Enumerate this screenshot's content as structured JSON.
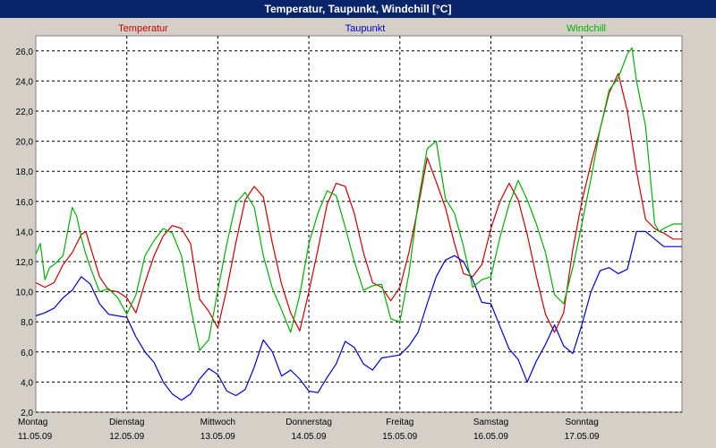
{
  "window": {
    "title": "Temperatur, Taupunkt, Windchill [°C]"
  },
  "chart_data": {
    "type": "line",
    "title": "Temperatur, Taupunkt, Windchill [°C]",
    "ylim": [
      2,
      27
    ],
    "xlim": [
      0,
      7.1
    ],
    "grid": true,
    "legend": "top",
    "y_ticks": [
      "26,0",
      "24,0",
      "22,0",
      "20,0",
      "18,0",
      "16,0",
      "14,0",
      "12,0",
      "10,0",
      "8,0",
      "6,0",
      "4,0",
      "2,0"
    ],
    "y_tick_values": [
      26,
      24,
      22,
      20,
      18,
      16,
      14,
      12,
      10,
      8,
      6,
      4,
      2
    ],
    "x_ticks": [
      {
        "day": "Montag",
        "date": "11.05.09"
      },
      {
        "day": "Dienstag",
        "date": "12.05.09"
      },
      {
        "day": "Mittwoch",
        "date": "13.05.09"
      },
      {
        "day": "Donnerstag",
        "date": "14.05.09"
      },
      {
        "day": "Freitag",
        "date": "15.05.09"
      },
      {
        "day": "Samstag",
        "date": "16.05.09"
      },
      {
        "day": "Sonntag",
        "date": "17.05.09"
      }
    ],
    "series": [
      {
        "name": "Temperatur",
        "color": "#cc0000",
        "x": [
          0.0,
          0.1,
          0.2,
          0.3,
          0.4,
          0.5,
          0.55,
          0.62,
          0.7,
          0.8,
          0.9,
          1.0,
          1.1,
          1.2,
          1.3,
          1.4,
          1.5,
          1.6,
          1.7,
          1.8,
          1.9,
          2.0,
          2.1,
          2.2,
          2.3,
          2.4,
          2.5,
          2.6,
          2.7,
          2.8,
          2.9,
          3.0,
          3.1,
          3.2,
          3.3,
          3.4,
          3.5,
          3.6,
          3.7,
          3.8,
          3.9,
          4.0,
          4.1,
          4.2,
          4.3,
          4.4,
          4.5,
          4.6,
          4.7,
          4.8,
          4.9,
          5.0,
          5.1,
          5.2,
          5.3,
          5.4,
          5.5,
          5.6,
          5.7,
          5.8,
          5.9,
          6.0,
          6.1,
          6.2,
          6.3,
          6.4,
          6.5,
          6.6,
          6.7,
          6.8,
          6.85,
          6.9,
          7.0,
          7.1
        ],
        "y": [
          10.6,
          10.3,
          10.6,
          11.8,
          12.6,
          13.8,
          14.0,
          12.6,
          11.0,
          10.1,
          10.0,
          9.6,
          8.6,
          10.6,
          12.4,
          13.7,
          14.4,
          14.2,
          13.2,
          9.5,
          8.7,
          7.6,
          10.2,
          13.3,
          16.1,
          17.0,
          16.3,
          13.2,
          10.5,
          8.6,
          7.4,
          10.0,
          12.8,
          15.8,
          17.2,
          17.0,
          15.2,
          12.6,
          10.6,
          10.3,
          9.4,
          10.3,
          12.6,
          15.6,
          18.9,
          17.3,
          15.6,
          13.2,
          11.2,
          11.0,
          11.8,
          14.2,
          16.0,
          17.2,
          16.1,
          13.8,
          11.0,
          8.5,
          7.3,
          8.6,
          12.8,
          16.0,
          18.5,
          20.8,
          23.2,
          24.5,
          22.0,
          18.0,
          14.8,
          14.2,
          14.0,
          13.9,
          13.5,
          13.5
        ]
      },
      {
        "name": "Taupunkt",
        "color": "#0000cc",
        "x": [
          0.0,
          0.1,
          0.2,
          0.3,
          0.4,
          0.5,
          0.6,
          0.7,
          0.8,
          0.9,
          1.0,
          1.1,
          1.2,
          1.3,
          1.4,
          1.5,
          1.6,
          1.7,
          1.8,
          1.9,
          2.0,
          2.1,
          2.2,
          2.3,
          2.4,
          2.5,
          2.6,
          2.7,
          2.8,
          2.9,
          3.0,
          3.1,
          3.2,
          3.3,
          3.4,
          3.5,
          3.6,
          3.7,
          3.8,
          3.9,
          4.0,
          4.1,
          4.2,
          4.3,
          4.4,
          4.5,
          4.6,
          4.7,
          4.8,
          4.9,
          5.0,
          5.1,
          5.2,
          5.3,
          5.4,
          5.5,
          5.6,
          5.7,
          5.8,
          5.9,
          6.0,
          6.1,
          6.2,
          6.3,
          6.4,
          6.5,
          6.6,
          6.7,
          6.8,
          6.9,
          7.0,
          7.1
        ],
        "y": [
          8.4,
          8.6,
          8.9,
          9.6,
          10.1,
          11.0,
          10.5,
          9.2,
          8.5,
          8.4,
          8.3,
          7.0,
          6.0,
          5.3,
          4.0,
          3.2,
          2.8,
          3.2,
          4.2,
          4.9,
          4.5,
          3.4,
          3.1,
          3.5,
          5.0,
          6.8,
          6.0,
          4.4,
          4.8,
          4.2,
          3.4,
          3.3,
          4.3,
          5.2,
          6.7,
          6.3,
          5.2,
          4.8,
          5.6,
          5.7,
          5.8,
          6.4,
          7.3,
          9.2,
          11.0,
          12.1,
          12.4,
          12.0,
          10.8,
          9.3,
          9.2,
          7.7,
          6.2,
          5.5,
          4.0,
          5.4,
          6.5,
          7.8,
          6.4,
          5.9,
          7.8,
          10.0,
          11.4,
          11.6,
          11.2,
          11.5,
          14.0,
          14.0,
          13.5,
          13.0,
          13.0,
          13.0
        ]
      },
      {
        "name": "Windchill",
        "color": "#00b000",
        "x": [
          0.0,
          0.05,
          0.1,
          0.15,
          0.2,
          0.3,
          0.4,
          0.45,
          0.5,
          0.55,
          0.6,
          0.7,
          0.8,
          0.9,
          1.0,
          1.1,
          1.2,
          1.3,
          1.4,
          1.5,
          1.6,
          1.7,
          1.8,
          1.9,
          2.0,
          2.1,
          2.2,
          2.3,
          2.4,
          2.5,
          2.6,
          2.7,
          2.8,
          2.9,
          3.0,
          3.1,
          3.2,
          3.3,
          3.4,
          3.5,
          3.6,
          3.7,
          3.8,
          3.9,
          4.0,
          4.1,
          4.2,
          4.3,
          4.4,
          4.5,
          4.6,
          4.7,
          4.8,
          4.9,
          5.0,
          5.1,
          5.2,
          5.3,
          5.4,
          5.5,
          5.6,
          5.7,
          5.8,
          5.9,
          6.0,
          6.1,
          6.2,
          6.3,
          6.4,
          6.5,
          6.55,
          6.6,
          6.7,
          6.8,
          6.85,
          6.9,
          7.0,
          7.1
        ],
        "y": [
          12.5,
          13.2,
          10.8,
          11.6,
          11.8,
          12.4,
          15.6,
          15.0,
          13.6,
          12.5,
          11.6,
          10.0,
          10.2,
          9.6,
          8.5,
          9.8,
          12.4,
          13.4,
          14.2,
          13.9,
          12.4,
          9.0,
          6.1,
          6.8,
          10.1,
          13.2,
          15.9,
          16.6,
          15.6,
          12.4,
          10.2,
          8.8,
          7.3,
          9.8,
          13.2,
          15.2,
          16.7,
          16.4,
          14.3,
          12.0,
          10.1,
          10.4,
          10.5,
          8.2,
          8.0,
          11.2,
          15.9,
          19.5,
          20.0,
          16.2,
          15.2,
          13.0,
          10.3,
          10.8,
          11.0,
          13.6,
          15.8,
          17.4,
          16.1,
          14.5,
          12.6,
          9.8,
          9.2,
          11.6,
          14.5,
          17.5,
          20.8,
          23.4,
          24.2,
          25.8,
          26.2,
          24.0,
          21.0,
          14.5,
          14.0,
          14.2,
          14.5,
          14.5
        ]
      }
    ]
  }
}
